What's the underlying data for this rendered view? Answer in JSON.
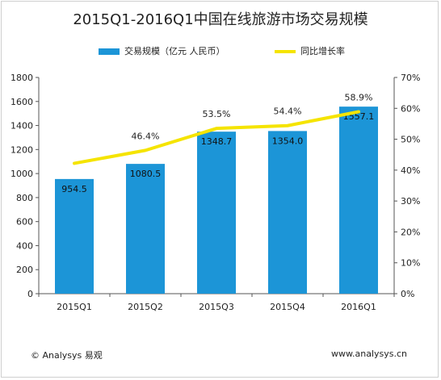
{
  "chart_data": {
    "type": "bar",
    "title": "2015Q1-2016Q1中国在线旅游市场交易规模",
    "categories": [
      "2015Q1",
      "2015Q2",
      "2015Q3",
      "2015Q4",
      "2016Q1"
    ],
    "series": [
      {
        "name": "交易规模（亿元 人民币）",
        "type": "bar",
        "axis": "left",
        "values": [
          954.5,
          1080.5,
          1348.7,
          1354.0,
          1557.1
        ],
        "labels": [
          "954.5",
          "1080.5",
          "1348.7",
          "1354.0",
          "1557.1"
        ],
        "color": "#1c95d7"
      },
      {
        "name": "同比增长率",
        "type": "line",
        "axis": "right",
        "values": [
          42.2,
          46.4,
          53.5,
          54.4,
          58.9
        ],
        "labels": [
          "",
          "46.4%",
          "53.5%",
          "54.4%",
          "58.9%"
        ],
        "color": "#f5e400"
      }
    ],
    "y_left": {
      "ylim": [
        0,
        1800
      ],
      "ticks": [
        0,
        200,
        400,
        600,
        800,
        1000,
        1200,
        1400,
        1600,
        1800
      ],
      "tick_labels": [
        "0",
        "200",
        "400",
        "600",
        "800",
        "1000",
        "1200",
        "1400",
        "1600",
        "1800"
      ]
    },
    "y_right": {
      "ylim": [
        0,
        70
      ],
      "ticks": [
        0,
        10,
        20,
        30,
        40,
        50,
        60,
        70
      ],
      "tick_labels": [
        "0%",
        "10%",
        "20%",
        "30%",
        "40%",
        "50%",
        "60%",
        "70%"
      ]
    },
    "grid": false,
    "legend_position": "top-center"
  },
  "footer": {
    "source": "© Analysys 易观",
    "website": "www.analysys.cn"
  }
}
